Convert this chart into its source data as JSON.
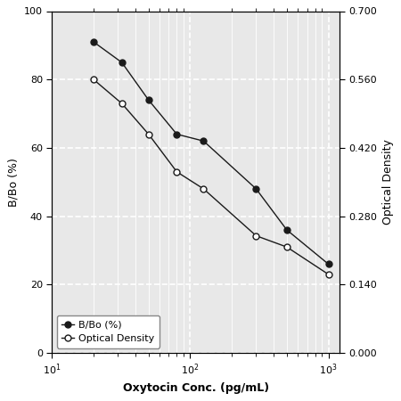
{
  "bbo_x": [
    20,
    32,
    50,
    80,
    125,
    300,
    500,
    1000
  ],
  "bbo_y": [
    91,
    85,
    74,
    64,
    62,
    48,
    36,
    26
  ],
  "od_x": [
    20,
    32,
    50,
    80,
    125,
    300,
    500,
    1000
  ],
  "od_y": [
    0.56,
    0.511,
    0.448,
    0.371,
    0.336,
    0.24,
    0.217,
    0.161
  ],
  "xlabel": "Oxytocin Conc. (pg/mL)",
  "ylabel_left": "B/Bo (%)",
  "ylabel_right": "Optical Density",
  "legend_bbo": "B/Bo (%)",
  "legend_od": "Optical Density",
  "xlim": [
    10,
    1200
  ],
  "ylim_left": [
    0,
    100
  ],
  "ylim_right": [
    0.0,
    0.7
  ],
  "xticks": [
    10,
    100,
    1000
  ],
  "xtick_labels": [
    "10",
    "100",
    "1,000"
  ],
  "yticks_left": [
    0,
    20,
    40,
    60,
    80,
    100
  ],
  "yticks_right": [
    0.0,
    0.14,
    0.28,
    0.42,
    0.56,
    0.7
  ],
  "ytick_labels_right": [
    "0.000",
    "0.140",
    "0.280",
    "0.420",
    "0.560",
    "0.700"
  ],
  "line_color": "#1a1a1a",
  "bg_color": "#e8e8e8",
  "grid_major_color": "#ffffff",
  "grid_minor_color": "#c0c0c0",
  "figure_bg": "#ffffff"
}
